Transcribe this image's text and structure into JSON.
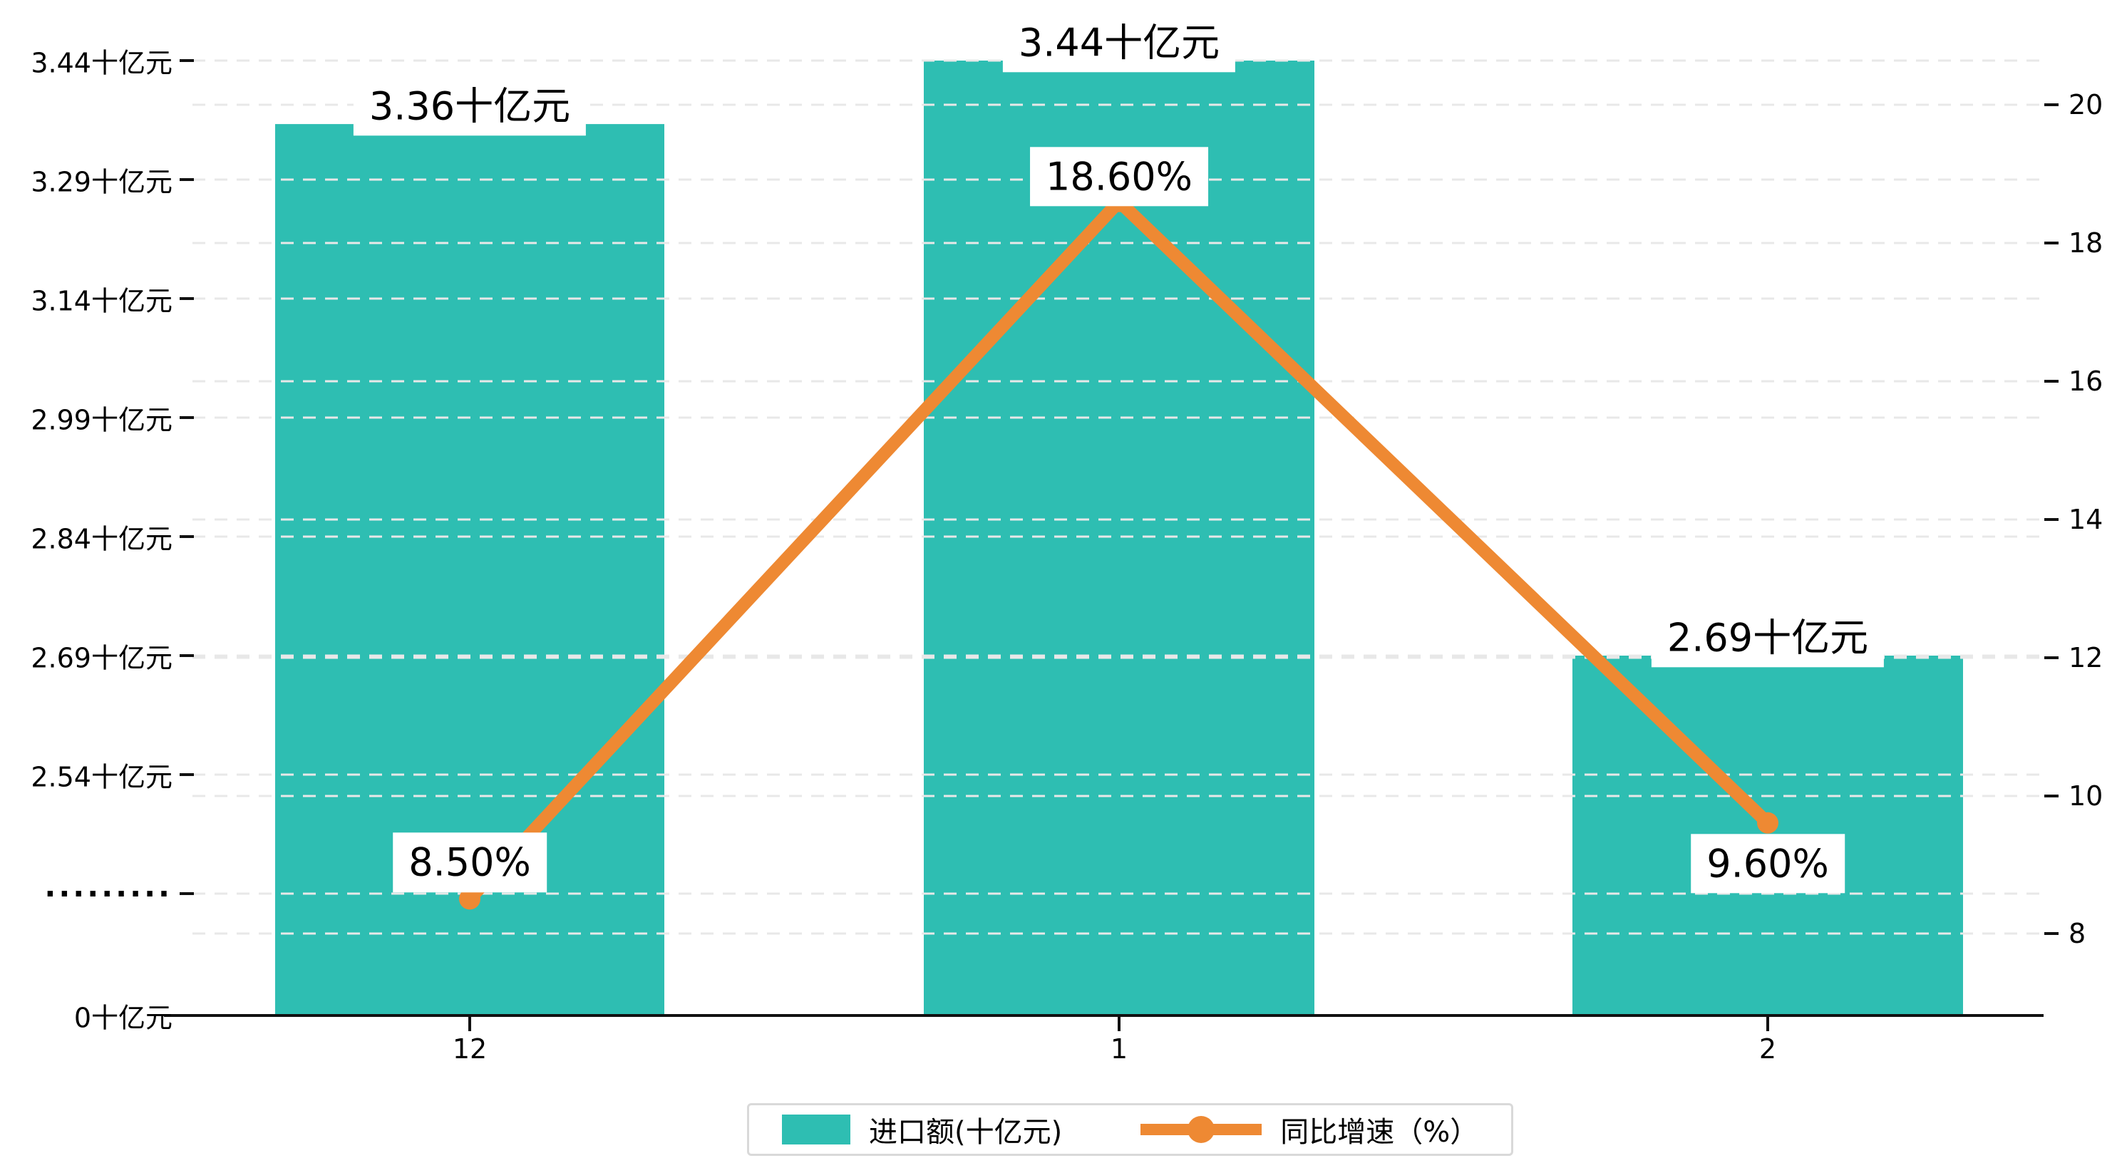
{
  "chart_data": {
    "type": "bar+line",
    "categories": [
      "12",
      "1",
      "2"
    ],
    "series": [
      {
        "name": "进口额(十亿元)",
        "type": "bar",
        "axis": "left",
        "unit": "十亿元",
        "values": [
          3.36,
          3.44,
          2.69
        ],
        "data_labels": [
          "3.36十亿元",
          "3.44十亿元",
          "2.69十亿元"
        ],
        "color": "#2ebeb2"
      },
      {
        "name": "同比增速（%）",
        "type": "line",
        "axis": "right",
        "unit": "%",
        "values": [
          8.5,
          18.6,
          9.6
        ],
        "data_labels": [
          "8.50%",
          "18.60%",
          "9.60%"
        ],
        "color": "#ee8933"
      }
    ],
    "left_axis": {
      "tick_labels": [
        "3.44十亿元",
        "3.29十亿元",
        "3.14十亿元",
        "2.99十亿元",
        "2.84十亿元",
        "2.69十亿元",
        "2.54十亿元",
        "·········",
        "0十亿元"
      ],
      "tick_values": [
        3.44,
        3.29,
        3.14,
        2.99,
        2.84,
        2.69,
        2.54,
        null,
        0
      ],
      "axis_break": true,
      "range_top": 3.44,
      "step": 0.15
    },
    "right_axis": {
      "tick_labels": [
        "20",
        "18",
        "16",
        "14",
        "12",
        "10",
        "8"
      ],
      "tick_values": [
        20,
        18,
        16,
        14,
        12,
        10,
        8
      ]
    },
    "grid": true,
    "legend_position": "bottom"
  },
  "legend": {
    "bar_label": "进口额(十亿元)",
    "line_label": "同比增速（%）"
  },
  "colors": {
    "bar": "#2ebeb2",
    "line": "#ee8933",
    "grid": "#e8e8e8",
    "axis": "#111111",
    "label_bg": "#ffffff",
    "legend_border": "#d9d9d9"
  }
}
